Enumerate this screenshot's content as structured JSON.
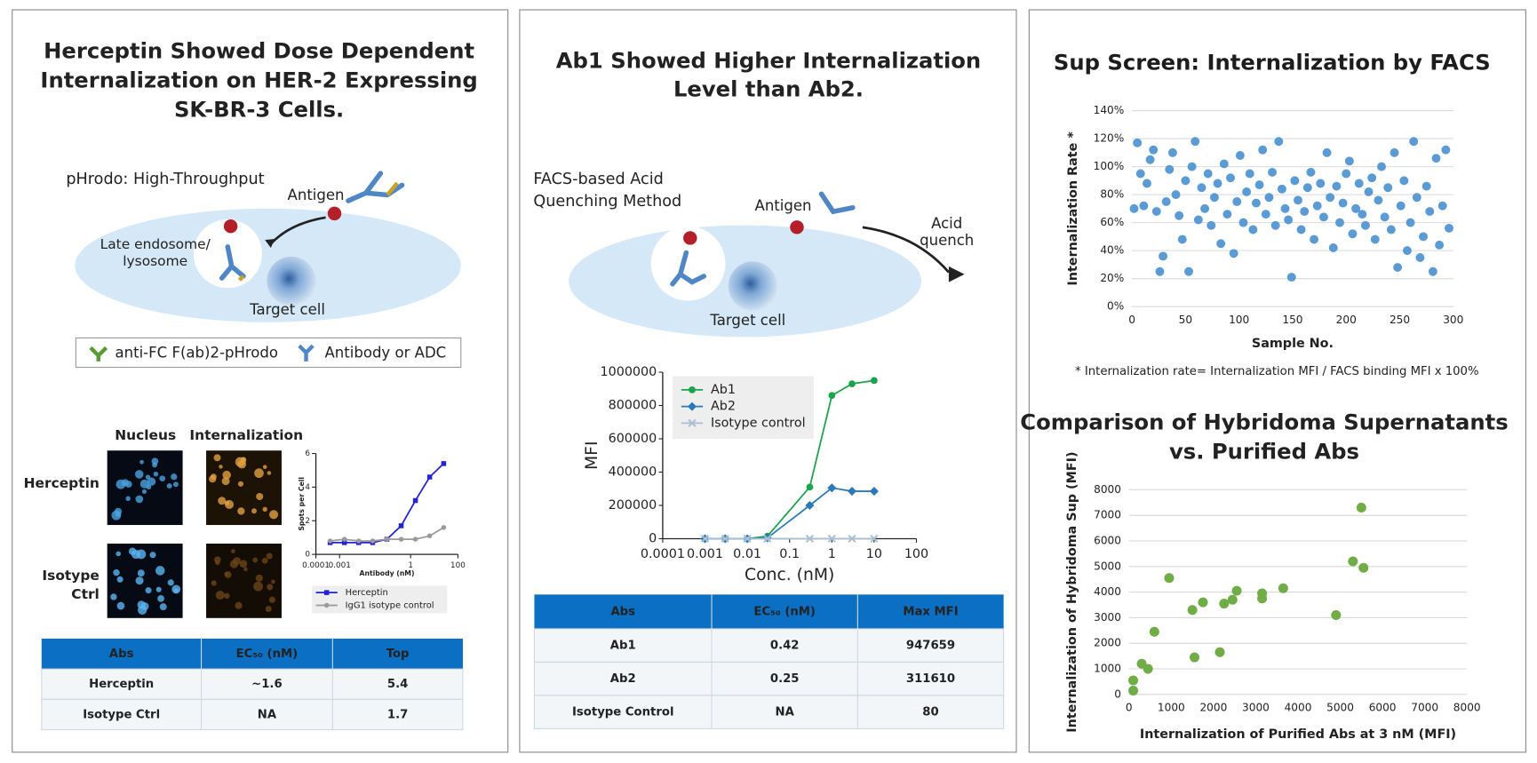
{
  "panels": [
    {
      "title": [
        "Herceptin Showed Dose Dependent",
        "Internalization on HER-2 Expressing",
        "SK-BR-3 Cells."
      ],
      "diagram": {
        "heading": [
          "pHrodo: High-Throughput"
        ],
        "antigen": "Antigen",
        "endosome": [
          "Late endosome/",
          "lysosome"
        ],
        "target": "Target cell",
        "legend": [
          "anti-FC F(ab)2-pHrodo",
          "Antibody or ADC"
        ]
      },
      "images": {
        "columns": [
          "Nucleus",
          "Internalization"
        ],
        "rows": [
          [
            "Herceptin"
          ],
          [
            "Isotype",
            "Ctrl"
          ]
        ]
      }
    },
    {
      "title": [
        "Ab1 Showed Higher Internalization",
        "Level than Ab2."
      ],
      "diagram": {
        "heading": [
          "FACS-based Acid",
          "Quenching Method"
        ],
        "antigen": "Antigen",
        "quench": [
          "Acid",
          "quench"
        ],
        "target": "Target cell"
      }
    }
  ],
  "tables": [
    {
      "header": [
        "Abs",
        "EC₅₀ (nM)",
        "Top"
      ],
      "rows": [
        [
          "Herceptin",
          "~1.6",
          "5.4"
        ],
        [
          "Isotype Ctrl",
          "NA",
          "1.7"
        ]
      ]
    },
    {
      "header": [
        "Abs",
        "EC₅₀ (nM)",
        "Max MFI"
      ],
      "rows": [
        [
          "Ab1",
          "0.42",
          "947659"
        ],
        [
          "Ab2",
          "0.25",
          "311610"
        ],
        [
          "Isotype Control",
          "NA",
          "80"
        ]
      ]
    }
  ],
  "chart_data": [
    {
      "type": "line",
      "xlog": true,
      "xlabel": "Antibody (nM)",
      "ylabel": "Spots per Cell",
      "x": [
        0.0004,
        0.0016,
        0.0064,
        0.025,
        0.1,
        0.4,
        1.6,
        6.4,
        25
      ],
      "xlim": [
        0.0001,
        100
      ],
      "xticks": [
        0.0001,
        0.001,
        1,
        100
      ],
      "ylim": [
        0,
        6
      ],
      "yticks": [
        0,
        2,
        4,
        6
      ],
      "grid": false,
      "series": [
        {
          "name": "Herceptin",
          "color": "#2323d6",
          "marker": "square",
          "values": [
            0.7,
            0.7,
            0.7,
            0.7,
            0.9,
            1.7,
            3.2,
            4.6,
            5.4
          ]
        },
        {
          "name": "IgG1 isotype control",
          "color": "#9a9a9a",
          "marker": "circle",
          "values": [
            0.8,
            0.9,
            0.8,
            0.8,
            0.9,
            0.9,
            0.9,
            1.1,
            1.6
          ]
        }
      ]
    },
    {
      "type": "line",
      "xlog": true,
      "xlabel": "Conc. (nM)",
      "ylabel": "MFI",
      "x": [
        0.001,
        0.003,
        0.01,
        0.03,
        0.3,
        1,
        3,
        10
      ],
      "xlim": [
        0.0001,
        100
      ],
      "xticks": [
        0.0001,
        0.001,
        0.01,
        0.1,
        1,
        10,
        100
      ],
      "ylim": [
        0,
        1000000
      ],
      "yticks": [
        0,
        200000,
        400000,
        600000,
        800000,
        1000000
      ],
      "grid": false,
      "series": [
        {
          "name": "Ab1",
          "color": "#1aa34a",
          "marker": "circle",
          "values": [
            0,
            0,
            0,
            15000,
            310000,
            860000,
            930000,
            950000
          ]
        },
        {
          "name": "Ab2",
          "color": "#2a7ab8",
          "marker": "diamond",
          "values": [
            0,
            0,
            0,
            5000,
            200000,
            305000,
            285000,
            285000
          ]
        },
        {
          "name": "Isotype control",
          "color": "#a9bfd3",
          "marker": "x",
          "values": [
            0,
            0,
            0,
            0,
            0,
            0,
            0,
            0
          ]
        }
      ]
    },
    {
      "type": "scatter",
      "title": "Sup Screen: Internalization by FACS",
      "xlabel": "Sample No.",
      "ylabel": "Internalization Rate *",
      "footnote": "* Internalization rate= Internalization MFI / FACS binding MFI x 100%",
      "color": "#5b9bd5",
      "grid": true,
      "xlim": [
        0,
        300
      ],
      "xticks": [
        0,
        50,
        100,
        150,
        200,
        250,
        300
      ],
      "ylim": [
        0,
        140
      ],
      "yticks": [
        {
          "value": 0,
          "label": "0%"
        },
        {
          "value": 20,
          "label": "20%"
        },
        {
          "value": 40,
          "label": "40%"
        },
        {
          "value": 60,
          "label": "60%"
        },
        {
          "value": 80,
          "label": "80%"
        },
        {
          "value": 100,
          "label": "100%"
        },
        {
          "value": 120,
          "label": "120%"
        },
        {
          "value": 140,
          "label": "140%"
        }
      ],
      "x": [
        2,
        5,
        8,
        11,
        14,
        17,
        20,
        23,
        26,
        29,
        32,
        35,
        38,
        41,
        44,
        47,
        50,
        53,
        56,
        59,
        62,
        65,
        68,
        71,
        74,
        77,
        80,
        83,
        86,
        89,
        92,
        95,
        98,
        101,
        104,
        107,
        110,
        113,
        116,
        119,
        122,
        125,
        128,
        131,
        134,
        137,
        140,
        143,
        146,
        149,
        152,
        155,
        158,
        161,
        164,
        167,
        170,
        173,
        176,
        179,
        182,
        185,
        188,
        191,
        194,
        197,
        200,
        203,
        206,
        209,
        212,
        215,
        218,
        221,
        224,
        227,
        230,
        233,
        236,
        239,
        242,
        245,
        248,
        251,
        254,
        257,
        260,
        263,
        266,
        269,
        272,
        275,
        278,
        281,
        284,
        287,
        290,
        293,
        296
      ],
      "values": [
        70,
        117,
        95,
        72,
        88,
        105,
        112,
        68,
        25,
        36,
        75,
        98,
        110,
        80,
        65,
        48,
        90,
        25,
        100,
        118,
        62,
        85,
        70,
        95,
        58,
        78,
        88,
        45,
        102,
        66,
        92,
        38,
        75,
        108,
        60,
        82,
        95,
        55,
        74,
        87,
        112,
        66,
        78,
        96,
        58,
        118,
        84,
        70,
        62,
        21,
        90,
        76,
        55,
        68,
        85,
        96,
        48,
        72,
        88,
        64,
        110,
        78,
        42,
        86,
        60,
        74,
        95,
        104,
        52,
        70,
        88,
        66,
        58,
        82,
        92,
        48,
        76,
        100,
        64,
        85,
        55,
        110,
        28,
        72,
        90,
        40,
        60,
        118,
        78,
        35,
        50,
        86,
        68,
        25,
        106,
        44,
        72,
        112,
        56
      ]
    },
    {
      "type": "scatter",
      "title": [
        "Comparison of Hybridoma Supernatants",
        "vs. Purified Abs"
      ],
      "xlabel": "Internalization of Purified Abs at 3 nM (MFI)",
      "ylabel": "Internalization of Hybridoma Sup (MFI)",
      "color": "#70ad47",
      "grid": true,
      "xlim": [
        0,
        8000
      ],
      "xticks": [
        0,
        1000,
        2000,
        3000,
        4000,
        5000,
        6000,
        7000,
        8000
      ],
      "ylim": [
        0,
        8000
      ],
      "yticks": [
        0,
        1000,
        2000,
        3000,
        4000,
        5000,
        6000,
        7000,
        8000
      ],
      "x": [
        100,
        100,
        300,
        450,
        600,
        950,
        1500,
        1550,
        1750,
        2150,
        2250,
        2450,
        2550,
        3150,
        3150,
        3650,
        4900,
        5300,
        5500,
        5550
      ],
      "values": [
        550,
        150,
        1200,
        1000,
        2450,
        4550,
        3300,
        1450,
        3600,
        1650,
        3550,
        3700,
        4050,
        3750,
        3950,
        4150,
        3100,
        5200,
        7300,
        4950
      ]
    }
  ]
}
